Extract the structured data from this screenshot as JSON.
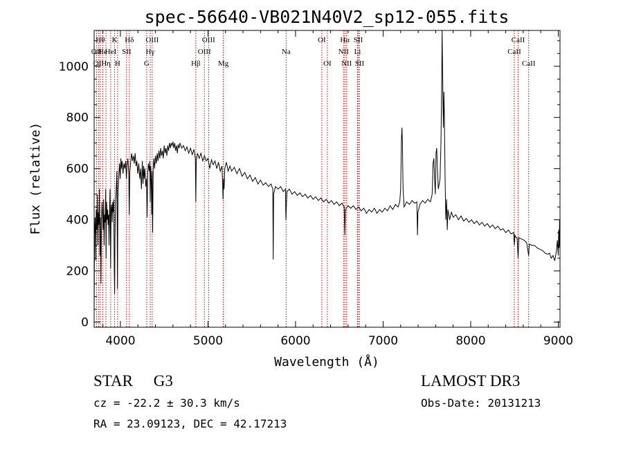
{
  "chart_data": {
    "type": "line",
    "title": "spec-56640-VB021N40V2_sp12-055.fits",
    "xlabel": "Wavelength (Å)",
    "ylabel": "Flux (relative)",
    "xlim": [
      3700,
      9020
    ],
    "ylim": [
      -20,
      1140
    ],
    "x_ticks": [
      4000,
      5000,
      6000,
      7000,
      8000,
      9000
    ],
    "y_ticks": [
      0,
      200,
      400,
      600,
      800,
      1000
    ],
    "grid": false,
    "line_color": "#000000",
    "marker_color": "#c00000",
    "spectrum": [
      [
        3700,
        40
      ],
      [
        3705,
        350
      ],
      [
        3712,
        410
      ],
      [
        3718,
        240
      ],
      [
        3724,
        440
      ],
      [
        3730,
        360
      ],
      [
        3736,
        500
      ],
      [
        3742,
        300
      ],
      [
        3748,
        430
      ],
      [
        3754,
        380
      ],
      [
        3760,
        520
      ],
      [
        3766,
        260
      ],
      [
        3772,
        410
      ],
      [
        3778,
        150
      ],
      [
        3784,
        400
      ],
      [
        3790,
        470
      ],
      [
        3796,
        420
      ],
      [
        3802,
        360
      ],
      [
        3808,
        480
      ],
      [
        3814,
        300
      ],
      [
        3820,
        420
      ],
      [
        3826,
        390
      ],
      [
        3832,
        520
      ],
      [
        3836,
        250
      ],
      [
        3842,
        470
      ],
      [
        3848,
        400
      ],
      [
        3854,
        440
      ],
      [
        3860,
        380
      ],
      [
        3866,
        420
      ],
      [
        3870,
        300
      ],
      [
        3876,
        440
      ],
      [
        3882,
        520
      ],
      [
        3888,
        210
      ],
      [
        3894,
        440
      ],
      [
        3900,
        460
      ],
      [
        3906,
        390
      ],
      [
        3912,
        470
      ],
      [
        3918,
        430
      ],
      [
        3924,
        480
      ],
      [
        3930,
        200
      ],
      [
        3934,
        110
      ],
      [
        3938,
        330
      ],
      [
        3944,
        470
      ],
      [
        3952,
        520
      ],
      [
        3960,
        590
      ],
      [
        3966,
        130
      ],
      [
        3972,
        500
      ],
      [
        3980,
        560
      ],
      [
        3990,
        620
      ],
      [
        3998,
        560
      ],
      [
        4005,
        640
      ],
      [
        4012,
        600
      ],
      [
        4020,
        630
      ],
      [
        4030,
        580
      ],
      [
        4040,
        620
      ],
      [
        4050,
        600
      ],
      [
        4060,
        630
      ],
      [
        4068,
        560
      ],
      [
        4075,
        610
      ],
      [
        4085,
        640
      ],
      [
        4095,
        580
      ],
      [
        4101,
        420
      ],
      [
        4108,
        590
      ],
      [
        4118,
        630
      ],
      [
        4128,
        660
      ],
      [
        4138,
        630
      ],
      [
        4148,
        650
      ],
      [
        4158,
        620
      ],
      [
        4168,
        660
      ],
      [
        4178,
        610
      ],
      [
        4188,
        630
      ],
      [
        4198,
        580
      ],
      [
        4210,
        620
      ],
      [
        4220,
        560
      ],
      [
        4230,
        600
      ],
      [
        4240,
        520
      ],
      [
        4250,
        630
      ],
      [
        4258,
        540
      ],
      [
        4266,
        610
      ],
      [
        4272,
        560
      ],
      [
        4280,
        600
      ],
      [
        4290,
        530
      ],
      [
        4298,
        560
      ],
      [
        4305,
        410
      ],
      [
        4312,
        580
      ],
      [
        4320,
        620
      ],
      [
        4330,
        590
      ],
      [
        4336,
        630
      ],
      [
        4340,
        470
      ],
      [
        4346,
        610
      ],
      [
        4352,
        550
      ],
      [
        4358,
        420
      ],
      [
        4362,
        590
      ],
      [
        4368,
        350
      ],
      [
        4374,
        600
      ],
      [
        4382,
        640
      ],
      [
        4390,
        600
      ],
      [
        4400,
        650
      ],
      [
        4410,
        620
      ],
      [
        4420,
        660
      ],
      [
        4430,
        630
      ],
      [
        4440,
        670
      ],
      [
        4450,
        640
      ],
      [
        4460,
        680
      ],
      [
        4470,
        650
      ],
      [
        4480,
        670
      ],
      [
        4490,
        640
      ],
      [
        4500,
        690
      ],
      [
        4510,
        660
      ],
      [
        4520,
        680
      ],
      [
        4530,
        650
      ],
      [
        4540,
        690
      ],
      [
        4550,
        670
      ],
      [
        4560,
        700
      ],
      [
        4570,
        680
      ],
      [
        4580,
        700
      ],
      [
        4590,
        690
      ],
      [
        4600,
        705
      ],
      [
        4610,
        680
      ],
      [
        4620,
        700
      ],
      [
        4630,
        670
      ],
      [
        4640,
        690
      ],
      [
        4650,
        660
      ],
      [
        4660,
        695
      ],
      [
        4670,
        680
      ],
      [
        4680,
        700
      ],
      [
        4690,
        690
      ],
      [
        4700,
        680
      ],
      [
        4720,
        690
      ],
      [
        4740,
        670
      ],
      [
        4760,
        685
      ],
      [
        4780,
        660
      ],
      [
        4800,
        680
      ],
      [
        4820,
        655
      ],
      [
        4840,
        675
      ],
      [
        4856,
        640
      ],
      [
        4861,
        470
      ],
      [
        4866,
        630
      ],
      [
        4880,
        660
      ],
      [
        4900,
        640
      ],
      [
        4920,
        660
      ],
      [
        4940,
        630
      ],
      [
        4960,
        650
      ],
      [
        4980,
        630
      ],
      [
        5000,
        640
      ],
      [
        5020,
        600
      ],
      [
        5040,
        635
      ],
      [
        5060,
        615
      ],
      [
        5080,
        630
      ],
      [
        5100,
        600
      ],
      [
        5120,
        625
      ],
      [
        5140,
        590
      ],
      [
        5160,
        610
      ],
      [
        5167,
        540
      ],
      [
        5172,
        480
      ],
      [
        5178,
        560
      ],
      [
        5184,
        520
      ],
      [
        5192,
        600
      ],
      [
        5210,
        625
      ],
      [
        5230,
        590
      ],
      [
        5250,
        610
      ],
      [
        5270,
        590
      ],
      [
        5300,
        605
      ],
      [
        5330,
        580
      ],
      [
        5360,
        600
      ],
      [
        5390,
        570
      ],
      [
        5420,
        585
      ],
      [
        5450,
        560
      ],
      [
        5480,
        575
      ],
      [
        5510,
        550
      ],
      [
        5540,
        565
      ],
      [
        5570,
        540
      ],
      [
        5600,
        555
      ],
      [
        5630,
        535
      ],
      [
        5660,
        545
      ],
      [
        5690,
        530
      ],
      [
        5720,
        540
      ],
      [
        5740,
        520
      ],
      [
        5745,
        245
      ],
      [
        5750,
        500
      ],
      [
        5770,
        530
      ],
      [
        5800,
        520
      ],
      [
        5830,
        530
      ],
      [
        5860,
        510
      ],
      [
        5885,
        520
      ],
      [
        5890,
        400
      ],
      [
        5896,
        460
      ],
      [
        5902,
        510
      ],
      [
        5930,
        520
      ],
      [
        5960,
        500
      ],
      [
        5990,
        510
      ],
      [
        6020,
        495
      ],
      [
        6050,
        505
      ],
      [
        6080,
        490
      ],
      [
        6110,
        500
      ],
      [
        6140,
        485
      ],
      [
        6170,
        495
      ],
      [
        6200,
        480
      ],
      [
        6230,
        490
      ],
      [
        6260,
        475
      ],
      [
        6290,
        485
      ],
      [
        6320,
        470
      ],
      [
        6350,
        480
      ],
      [
        6380,
        465
      ],
      [
        6410,
        475
      ],
      [
        6440,
        460
      ],
      [
        6470,
        470
      ],
      [
        6500,
        455
      ],
      [
        6530,
        465
      ],
      [
        6555,
        450
      ],
      [
        6563,
        340
      ],
      [
        6570,
        440
      ],
      [
        6600,
        455
      ],
      [
        6630,
        445
      ],
      [
        6660,
        455
      ],
      [
        6690,
        440
      ],
      [
        6720,
        450
      ],
      [
        6750,
        435
      ],
      [
        6780,
        445
      ],
      [
        6810,
        425
      ],
      [
        6840,
        440
      ],
      [
        6870,
        430
      ],
      [
        6900,
        445
      ],
      [
        6930,
        425
      ],
      [
        6960,
        440
      ],
      [
        6990,
        430
      ],
      [
        7020,
        445
      ],
      [
        7050,
        435
      ],
      [
        7080,
        455
      ],
      [
        7110,
        440
      ],
      [
        7140,
        460
      ],
      [
        7170,
        450
      ],
      [
        7190,
        470
      ],
      [
        7200,
        520
      ],
      [
        7210,
        720
      ],
      [
        7215,
        760
      ],
      [
        7220,
        700
      ],
      [
        7228,
        520
      ],
      [
        7240,
        450
      ],
      [
        7270,
        470
      ],
      [
        7300,
        460
      ],
      [
        7330,
        475
      ],
      [
        7360,
        465
      ],
      [
        7385,
        470
      ],
      [
        7392,
        340
      ],
      [
        7398,
        430
      ],
      [
        7420,
        460
      ],
      [
        7450,
        475
      ],
      [
        7480,
        465
      ],
      [
        7510,
        480
      ],
      [
        7540,
        470
      ],
      [
        7560,
        500
      ],
      [
        7570,
        620
      ],
      [
        7580,
        640
      ],
      [
        7588,
        560
      ],
      [
        7596,
        500
      ],
      [
        7604,
        660
      ],
      [
        7612,
        680
      ],
      [
        7620,
        600
      ],
      [
        7630,
        520
      ],
      [
        7650,
        560
      ],
      [
        7660,
        700
      ],
      [
        7668,
        900
      ],
      [
        7674,
        1140
      ],
      [
        7680,
        960
      ],
      [
        7688,
        760
      ],
      [
        7694,
        900
      ],
      [
        7700,
        800
      ],
      [
        7708,
        560
      ],
      [
        7716,
        400
      ],
      [
        7724,
        480
      ],
      [
        7732,
        360
      ],
      [
        7740,
        440
      ],
      [
        7760,
        400
      ],
      [
        7780,
        430
      ],
      [
        7800,
        410
      ],
      [
        7830,
        420
      ],
      [
        7860,
        400
      ],
      [
        7890,
        415
      ],
      [
        7920,
        395
      ],
      [
        7950,
        405
      ],
      [
        7980,
        390
      ],
      [
        8010,
        400
      ],
      [
        8040,
        385
      ],
      [
        8070,
        395
      ],
      [
        8100,
        380
      ],
      [
        8130,
        390
      ],
      [
        8160,
        375
      ],
      [
        8190,
        385
      ],
      [
        8220,
        370
      ],
      [
        8250,
        380
      ],
      [
        8280,
        365
      ],
      [
        8310,
        375
      ],
      [
        8340,
        360
      ],
      [
        8370,
        365
      ],
      [
        8400,
        350
      ],
      [
        8430,
        360
      ],
      [
        8460,
        345
      ],
      [
        8490,
        350
      ],
      [
        8498,
        300
      ],
      [
        8505,
        340
      ],
      [
        8520,
        330
      ],
      [
        8530,
        330
      ],
      [
        8542,
        250
      ],
      [
        8550,
        330
      ],
      [
        8580,
        325
      ],
      [
        8610,
        320
      ],
      [
        8640,
        310
      ],
      [
        8662,
        260
      ],
      [
        8670,
        305
      ],
      [
        8700,
        300
      ],
      [
        8730,
        300
      ],
      [
        8760,
        290
      ],
      [
        8790,
        285
      ],
      [
        8820,
        280
      ],
      [
        8850,
        270
      ],
      [
        8880,
        265
      ],
      [
        8900,
        270
      ],
      [
        8920,
        250
      ],
      [
        8940,
        260
      ],
      [
        8960,
        240
      ],
      [
        8980,
        280
      ],
      [
        8990,
        320
      ],
      [
        9000,
        260
      ],
      [
        9005,
        360
      ],
      [
        9010,
        290
      ],
      [
        9015,
        400
      ],
      [
        9018,
        300
      ]
    ],
    "line_markers": [
      {
        "wavelength": 3727,
        "label": "OII",
        "row": 1
      },
      {
        "wavelength": 3750,
        "label": "OII",
        "row": 2
      },
      {
        "wavelength": 3770,
        "label": "Hθ",
        "row": 0
      },
      {
        "wavelength": 3798,
        "label": "He",
        "row": 1
      },
      {
        "wavelength": 3835,
        "label": "Hη",
        "row": 2
      },
      {
        "wavelength": 3889,
        "label": "HeI",
        "row": 1
      },
      {
        "wavelength": 3934,
        "label": "K",
        "row": 0
      },
      {
        "wavelength": 3968,
        "label": "H",
        "row": 2
      },
      {
        "wavelength": 4070,
        "label": "SII",
        "row": 1
      },
      {
        "wavelength": 4102,
        "label": "Hδ",
        "row": 0
      },
      {
        "wavelength": 4300,
        "label": "G",
        "row": 2
      },
      {
        "wavelength": 4340,
        "label": "Hγ",
        "row": 1
      },
      {
        "wavelength": 4363,
        "label": "OIII",
        "row": 0
      },
      {
        "wavelength": 4861,
        "label": "Hβ",
        "row": 2
      },
      {
        "wavelength": 4959,
        "label": "OIII",
        "row": 1
      },
      {
        "wavelength": 5007,
        "label": "OIII",
        "row": 0
      },
      {
        "wavelength": 5175,
        "label": "Mg",
        "row": 2
      },
      {
        "wavelength": 5892,
        "label": "Na",
        "row": 1
      },
      {
        "wavelength": 6300,
        "label": "OI",
        "row": 0
      },
      {
        "wavelength": 6363,
        "label": "OI",
        "row": 2
      },
      {
        "wavelength": 6548,
        "label": "NII",
        "row": 1
      },
      {
        "wavelength": 6563,
        "label": "Hα",
        "row": 0
      },
      {
        "wavelength": 6583,
        "label": "NII",
        "row": 2
      },
      {
        "wavelength": 6707,
        "label": "Li",
        "row": 1
      },
      {
        "wavelength": 6716,
        "label": "SII",
        "row": 0
      },
      {
        "wavelength": 6731,
        "label": "SII",
        "row": 2
      },
      {
        "wavelength": 8498,
        "label": "CaII",
        "row": 1
      },
      {
        "wavelength": 8542,
        "label": "CaII",
        "row": 0
      },
      {
        "wavelength": 8662,
        "label": "CaII",
        "row": 2
      }
    ]
  },
  "info": {
    "class_label": "STAR",
    "subclass": "G3",
    "survey": "LAMOST DR3",
    "redshift": "cz = -22.2 ± 30.3 km/s",
    "obs_date": "Obs-Date: 20131213",
    "coords": "RA =  23.09123, DEC =  42.17213"
  }
}
